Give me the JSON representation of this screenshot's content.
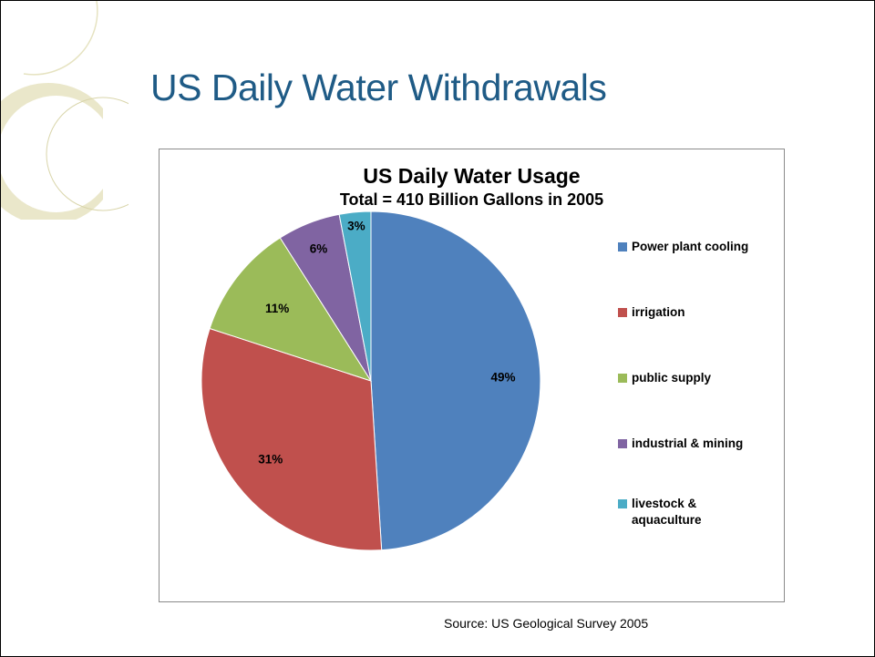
{
  "slide": {
    "title": "US Daily Water Withdrawals",
    "source": "Source:  US Geological Survey 2005"
  },
  "theme": {
    "title_color": "#1f5b86",
    "decoration_color": "#e6e3c1"
  },
  "chart_data": {
    "type": "pie",
    "title": "US Daily Water Usage",
    "subtitle": "Total = 410 Billion Gallons in 2005",
    "legend_position": "right",
    "slices": [
      {
        "name": "Power plant cooling",
        "value": 49,
        "label": "49%",
        "color": "#4f81bd"
      },
      {
        "name": "irrigation",
        "value": 31,
        "label": "31%",
        "color": "#c0504d"
      },
      {
        "name": "public supply",
        "value": 11,
        "label": "11%",
        "color": "#9bbb59"
      },
      {
        "name": "industrial & mining",
        "value": 6,
        "label": "6%",
        "color": "#8064a2"
      },
      {
        "name": "livestock & aquaculture",
        "value": 3,
        "label": "3%",
        "color": "#4bacc6"
      }
    ]
  }
}
